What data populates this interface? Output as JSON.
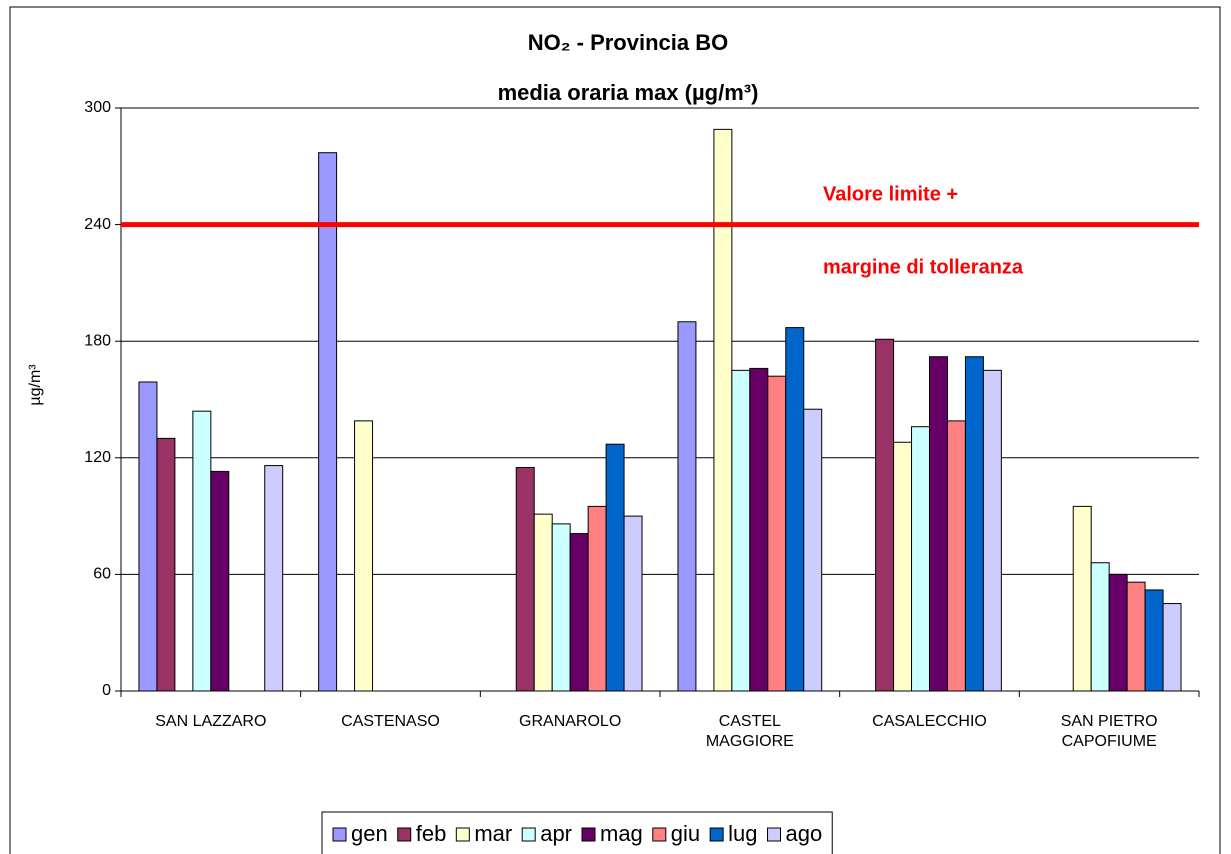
{
  "chart_data": {
    "type": "bar",
    "title": "NO₂ - Provincia BO",
    "subtitle": "media oraria max (µg/m³)",
    "y_label": "µg/m³",
    "categories": [
      "SAN LAZZARO",
      "CASTENASO",
      "GRANAROLO",
      "CASTEL\nMAGGIORE",
      "CASALECCHIO",
      "SAN PIETRO\nCAPOFIUME"
    ],
    "series": [
      {
        "name": "gen",
        "color": "#9999ff",
        "values": [
          159,
          277,
          null,
          190,
          null,
          null
        ]
      },
      {
        "name": "feb",
        "color": "#993366",
        "values": [
          130,
          null,
          115,
          null,
          181,
          null
        ]
      },
      {
        "name": "mar",
        "color": "#ffffcc",
        "values": [
          null,
          139,
          91,
          289,
          128,
          95
        ]
      },
      {
        "name": "apr",
        "color": "#ccffff",
        "values": [
          144,
          null,
          86,
          165,
          136,
          66
        ]
      },
      {
        "name": "mag",
        "color": "#660066",
        "values": [
          113,
          null,
          81,
          166,
          172,
          60
        ]
      },
      {
        "name": "giu",
        "color": "#ff8080",
        "values": [
          null,
          null,
          95,
          162,
          139,
          56
        ]
      },
      {
        "name": "lug",
        "color": "#0066cc",
        "values": [
          null,
          null,
          127,
          187,
          172,
          52
        ]
      },
      {
        "name": "ago",
        "color": "#ccccff",
        "values": [
          116,
          null,
          90,
          145,
          165,
          45
        ]
      }
    ],
    "ylim": [
      0,
      300
    ],
    "yticks": [
      0,
      60,
      120,
      180,
      240,
      300
    ],
    "grid": true,
    "reference_line": {
      "value": 240,
      "color": "#ff0000"
    },
    "annotations": [
      "Valore limite +",
      "margine di tolleranza"
    ],
    "legend": "bottom"
  }
}
